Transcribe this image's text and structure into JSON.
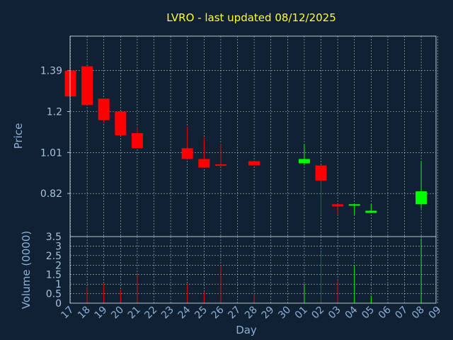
{
  "chart_data": {
    "type": "candlestick",
    "title": "LVRO - last updated 08/12/2025",
    "xlabel": "Day",
    "price_panel": {
      "ylabel": "Price",
      "yticks": [
        0.82,
        1.01,
        1.2,
        1.39
      ],
      "ylim": [
        0.62,
        1.55
      ]
    },
    "volume_panel": {
      "ylabel": "Volume (0000)",
      "yticks": [
        0,
        0.5,
        1,
        1.5,
        2,
        2.5,
        3,
        3.5
      ],
      "ylim": [
        0,
        3.5
      ]
    },
    "days": [
      "17",
      "18",
      "19",
      "20",
      "21",
      "22",
      "23",
      "24",
      "25",
      "26",
      "27",
      "28",
      "29",
      "30",
      "01",
      "02",
      "03",
      "04",
      "05",
      "06",
      "07",
      "08",
      "09"
    ],
    "candles": [
      {
        "day": "17",
        "open": 1.39,
        "high": 1.39,
        "low": 1.27,
        "close": 1.27,
        "color": "red"
      },
      {
        "day": "18",
        "open": 1.41,
        "high": 1.41,
        "low": 1.23,
        "close": 1.23,
        "color": "red"
      },
      {
        "day": "19",
        "open": 1.26,
        "high": 1.26,
        "low": 1.15,
        "close": 1.16,
        "color": "red"
      },
      {
        "day": "20",
        "open": 1.2,
        "high": 1.2,
        "low": 1.09,
        "close": 1.09,
        "color": "red"
      },
      {
        "day": "21",
        "open": 1.1,
        "high": 1.13,
        "low": 1.03,
        "close": 1.03,
        "color": "red"
      },
      {
        "day": "24",
        "open": 1.03,
        "high": 1.13,
        "low": 0.98,
        "close": 0.98,
        "color": "red"
      },
      {
        "day": "25",
        "open": 0.98,
        "high": 1.08,
        "low": 0.94,
        "close": 0.94,
        "color": "red"
      },
      {
        "day": "26",
        "open": 0.955,
        "high": 1.05,
        "low": 0.95,
        "close": 0.95,
        "color": "red"
      },
      {
        "day": "28",
        "open": 0.97,
        "high": 0.97,
        "low": 0.95,
        "close": 0.95,
        "color": "red"
      },
      {
        "day": "01",
        "open": 0.96,
        "high": 1.05,
        "low": 0.95,
        "close": 0.98,
        "color": "green"
      },
      {
        "day": "02",
        "open": 0.95,
        "high": 0.95,
        "low": 0.72,
        "close": 0.88,
        "color": "red"
      },
      {
        "day": "03",
        "open": 0.77,
        "high": 0.77,
        "low": 0.72,
        "close": 0.76,
        "color": "red"
      },
      {
        "day": "04",
        "open": 0.765,
        "high": 0.77,
        "low": 0.72,
        "close": 0.77,
        "color": "green"
      },
      {
        "day": "05",
        "open": 0.73,
        "high": 0.77,
        "low": 0.73,
        "close": 0.74,
        "color": "green"
      },
      {
        "day": "08",
        "open": 0.77,
        "high": 0.97,
        "low": 0.75,
        "close": 0.83,
        "color": "green"
      }
    ],
    "volume": [
      {
        "day": "18",
        "value": 0.8,
        "color": "red"
      },
      {
        "day": "19",
        "value": 1.0,
        "color": "red"
      },
      {
        "day": "20",
        "value": 0.7,
        "color": "red"
      },
      {
        "day": "21",
        "value": 1.5,
        "color": "red"
      },
      {
        "day": "24",
        "value": 1.0,
        "color": "red"
      },
      {
        "day": "25",
        "value": 0.6,
        "color": "red"
      },
      {
        "day": "26",
        "value": 2.0,
        "color": "red"
      },
      {
        "day": "28",
        "value": 0.5,
        "color": "red"
      },
      {
        "day": "01",
        "value": 1.0,
        "color": "green"
      },
      {
        "day": "02",
        "value": 2.7,
        "color": "red"
      },
      {
        "day": "03",
        "value": 1.2,
        "color": "red"
      },
      {
        "day": "04",
        "value": 2.0,
        "color": "green"
      },
      {
        "day": "05",
        "value": 0.4,
        "color": "green"
      },
      {
        "day": "08",
        "value": 3.4,
        "color": "green"
      }
    ],
    "grid": true,
    "colors": {
      "background": "#0f2133",
      "up": "#00ff00",
      "down": "#ff0000",
      "title": "#ffff33",
      "axis_text": "#8fb0d6"
    }
  }
}
